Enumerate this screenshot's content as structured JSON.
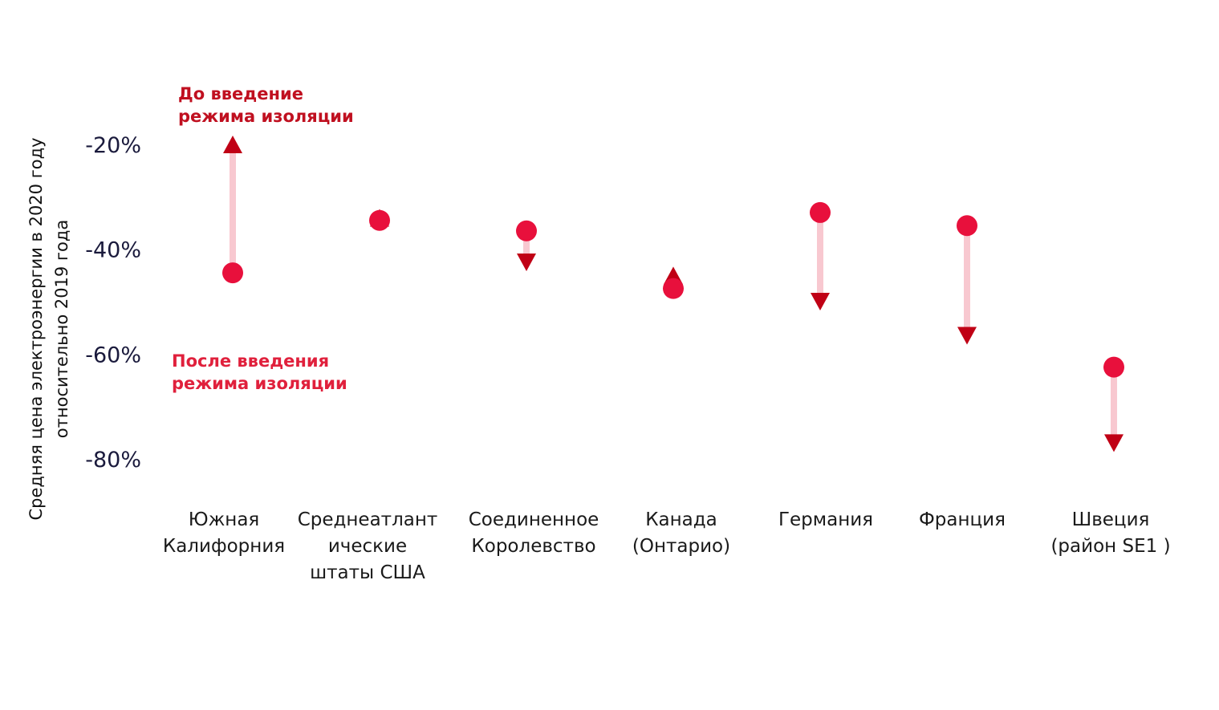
{
  "chart_data": {
    "type": "dumbbell",
    "ylabel": "Средняя цена электроэнергии в 2020 году относительно 2019 года",
    "ylabel_lines": [
      "Средняя цена электроэнергии в 2020 году",
      "относительно 2019 года"
    ],
    "yticks": [
      {
        "value": -20,
        "label": "-20%"
      },
      {
        "value": -40,
        "label": "-40%"
      },
      {
        "value": -60,
        "label": "-60%"
      },
      {
        "value": -80,
        "label": "-80%"
      }
    ],
    "ylim": [
      -80,
      -20
    ],
    "categories": [
      {
        "label": "Южная Калифорния",
        "lines": [
          "Южная",
          "Калифорния"
        ]
      },
      {
        "label": "Среднеатлантические штаты США",
        "lines": [
          "Среднеатлант",
          "ические",
          "штаты США"
        ]
      },
      {
        "label": "Соединенное Королевство",
        "lines": [
          "Соединенное",
          "Королевство"
        ]
      },
      {
        "label": "Канада (Онтарио)",
        "lines": [
          "Канада",
          "(Онтарио)"
        ]
      },
      {
        "label": "Германия",
        "lines": [
          "Германия"
        ]
      },
      {
        "label": "Франция",
        "lines": [
          "Франция"
        ]
      },
      {
        "label": "Швеция (район SE1 )",
        "lines": [
          "Швеция",
          "(район SE1 )"
        ]
      }
    ],
    "series": [
      {
        "name": "До введение режима изоляции",
        "marker": "circle",
        "values": [
          -44.5,
          -34.5,
          -36.5,
          -47.5,
          -33,
          -35.5,
          -62.5
        ]
      },
      {
        "name": "После введения режима изоляции",
        "marker": "triangle",
        "values": [
          -20,
          -34,
          -42.5,
          -45,
          -50,
          -56.5,
          -77
        ]
      }
    ],
    "annotations": {
      "before_lines": [
        "До введение",
        "режима изоляции"
      ],
      "after_lines": [
        "После введения",
        "режима изоляции"
      ]
    },
    "colors": {
      "circle": "#e8103c",
      "triangle": "#c00015",
      "connector": "#f8c8d0",
      "annot_before": "#c01020",
      "annot_after": "#e0203c"
    }
  }
}
